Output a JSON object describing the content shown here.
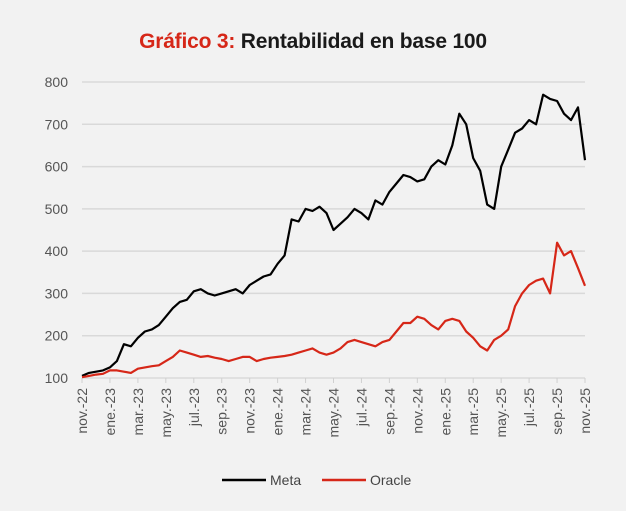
{
  "chart_data": {
    "type": "line",
    "title_lead": "Gráfico 3:",
    "title": "Rentabilidad en base 100",
    "xlabel": "",
    "ylabel": "",
    "ylim": [
      100,
      800
    ],
    "yticks": [
      100,
      200,
      300,
      400,
      500,
      600,
      700,
      800
    ],
    "xtick_labels": [
      "nov.-22",
      "ene.-23",
      "mar.-23",
      "may.-23",
      "jul.-23",
      "sep.-23",
      "nov.-23",
      "ene.-24",
      "mar.-24",
      "may.-24",
      "jul.-24",
      "sep.-24",
      "nov.-24",
      "ene.-25",
      "mar.-25",
      "may.-25",
      "jul.-25",
      "sep.-25",
      "nov.-25"
    ],
    "x_unit": "half-months since nov.-22",
    "grid": "horizontal",
    "legend_position": "bottom",
    "series": [
      {
        "name": "Meta",
        "color": "#000000",
        "values": [
          105,
          112,
          115,
          118,
          125,
          140,
          180,
          175,
          195,
          210,
          215,
          225,
          245,
          265,
          280,
          285,
          305,
          310,
          300,
          295,
          300,
          305,
          310,
          300,
          320,
          330,
          340,
          345,
          370,
          390,
          475,
          470,
          500,
          495,
          505,
          490,
          450,
          465,
          480,
          500,
          490,
          475,
          520,
          510,
          540,
          560,
          580,
          575,
          565,
          570,
          600,
          615,
          605,
          650,
          725,
          700,
          620,
          590,
          510,
          500,
          600,
          640,
          680,
          690,
          710,
          700,
          770,
          760,
          755,
          725,
          710,
          740,
          615
        ]
      },
      {
        "name": "Oracle",
        "color": "#d62718",
        "values": [
          102,
          105,
          108,
          110,
          118,
          118,
          115,
          112,
          122,
          125,
          128,
          130,
          140,
          150,
          165,
          160,
          155,
          150,
          152,
          148,
          145,
          140,
          145,
          150,
          150,
          140,
          145,
          148,
          150,
          152,
          155,
          160,
          165,
          170,
          160,
          155,
          160,
          170,
          185,
          190,
          185,
          180,
          175,
          185,
          190,
          210,
          230,
          230,
          245,
          240,
          225,
          215,
          235,
          240,
          235,
          210,
          195,
          175,
          165,
          190,
          200,
          215,
          270,
          300,
          320,
          330,
          335,
          300,
          420,
          390,
          400,
          360,
          318
        ]
      }
    ]
  }
}
